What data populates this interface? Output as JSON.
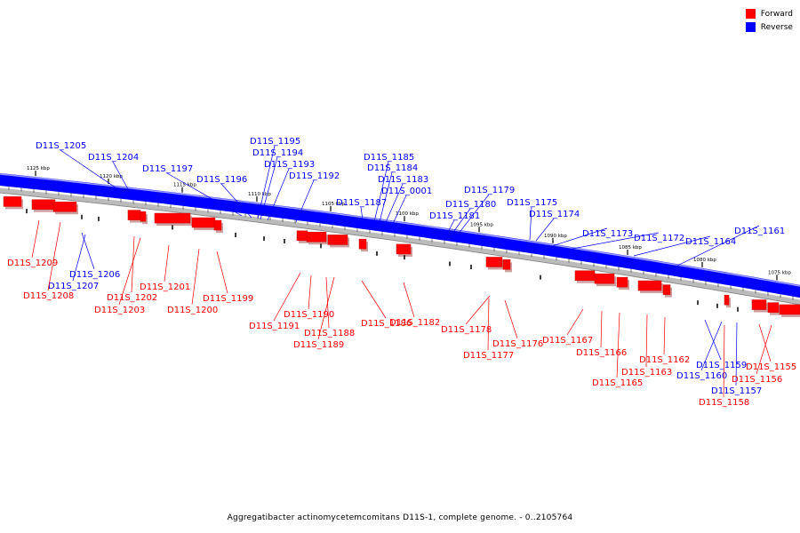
{
  "caption": "Aggregatibacter actinomycetemcomitans D11S-1, complete genome. - 0..2105764",
  "legend": [
    {
      "label": "Forward",
      "color": "#ff0000"
    },
    {
      "label": "Reverse",
      "color": "#0000ff"
    }
  ],
  "colors": {
    "forward": "#ff0000",
    "reverse": "#0000ff",
    "backbone": "#0000ff"
  },
  "ticks": [
    "1125 kbp",
    "1120 kbp",
    "1115 kbp",
    "1110 kbp",
    "1105 kbp",
    "1100 kbp",
    "1095 kbp",
    "1090 kbp",
    "1085 kbp",
    "1080 kbp",
    "1075 kbp"
  ],
  "reverse_labels": [
    "D11S_1205",
    "D11S_1204",
    "D11S_1197",
    "D11S_1196",
    "D11S_1195",
    "D11S_1194",
    "D11S_1193",
    "D11S_1192",
    "D11S_1185",
    "D11S_1184",
    "D11S_1183",
    "D11S_0001",
    "D11S_1187",
    "D11S_1179",
    "D11S_1180",
    "D11S_1181",
    "D11S_1175",
    "D11S_1174",
    "D11S_1173",
    "D11S_1172",
    "D11S_1164",
    "D11S_1161",
    "D11S_1206",
    "D11S_1207",
    "D11S_1159",
    "D11S_1160",
    "D11S_1157"
  ],
  "forward_labels": [
    "D11S_1209",
    "D11S_1208",
    "D11S_1202",
    "D11S_1203",
    "D11S_1201",
    "D11S_1200",
    "D11S_1199",
    "D11S_1191",
    "D11S_1190",
    "D11S_1188",
    "D11S_1189",
    "D11S_1186",
    "D11S_1182",
    "D11S_1178",
    "D11S_1177",
    "D11S_1176",
    "D11S_1167",
    "D11S_1166",
    "D11S_1165",
    "D11S_1163",
    "D11S_1162",
    "D11S_1155",
    "D11S_1156",
    "D11S_1158"
  ]
}
